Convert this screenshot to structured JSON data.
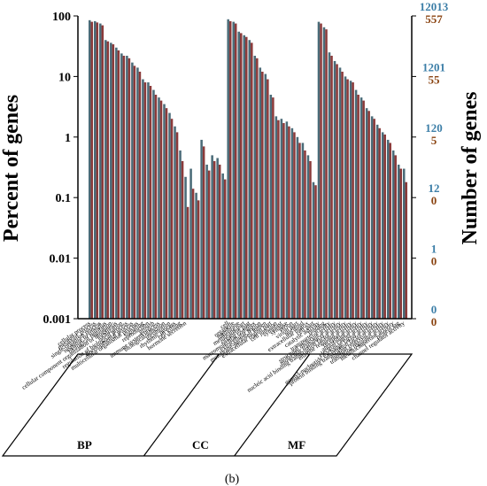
{
  "chart_data": {
    "type": "bar",
    "caption": "(b)",
    "ylabel_left": "Percent of genes",
    "ylabel_right": "Number of genes",
    "yscale": "log",
    "ylim": [
      0.001,
      100
    ],
    "left_ticks": [
      "100",
      "10",
      "1",
      "0.1",
      "0.01",
      "0.001"
    ],
    "right_ticks": [
      {
        "top": "12013",
        "bottom": "557"
      },
      {
        "top": "1201",
        "bottom": "55"
      },
      {
        "top": "120",
        "bottom": "5"
      },
      {
        "top": "12",
        "bottom": "0"
      },
      {
        "top": "1",
        "bottom": "0"
      },
      {
        "top": "0",
        "bottom": "0"
      }
    ],
    "colors": {
      "series_a": "#4a6b78",
      "series_b": "#8b3a3a",
      "right_top": "#3d7fa8",
      "right_bottom": "#8b4513"
    },
    "groups": [
      {
        "name": "BP",
        "start": 0,
        "end": 25
      },
      {
        "name": "CC",
        "start": 26,
        "end": 42
      },
      {
        "name": "MF",
        "start": 43,
        "end": 60
      }
    ],
    "categories": [
      "cellular process",
      "metabolic process",
      "single-organism process",
      "response to stimulus",
      "biological regulation",
      "cellular component organization or biogenesis",
      "localization",
      "regulation of biological process",
      "developmental process",
      "multicellular organismal process",
      "signaling",
      "reproduction",
      "growth",
      "immune system process",
      "biological adhesion",
      "locomotion",
      "rhythmic process",
      "cell killing",
      "hormone secretion",
      "",
      "",
      "",
      "",
      "",
      "",
      "",
      "cell",
      "organelle",
      "membrane",
      "membrane part",
      "organelle part",
      "macromolecular complex",
      "extracellular region",
      "membrane-enclosed lumen",
      "extracellular region part",
      "cell junction",
      "symplast",
      "synapse",
      "virion",
      "virion part",
      "nucleoid",
      "extracellular matrix",
      "cell part",
      "catalytic activity",
      "binding",
      "transporter activity",
      "structural molecule activity",
      "molecular transducer activity",
      "nucleic acid binding transcription factor activity",
      "enzyme regulator activity",
      "receptor activity",
      "antioxidant activity",
      "electron carrier activity",
      "guanyl-nucleotide exchange factor activity",
      "protein binding transcription factor activity",
      "nutrient reservoir activity",
      "translation regulator activity",
      "metallochaperone activity",
      "protein tag",
      "channel regulator activity"
    ],
    "series": [
      {
        "values": [
          85,
          82,
          75,
          40,
          36,
          30,
          24,
          22,
          17,
          14,
          9,
          8,
          6,
          4.5,
          3.5,
          2.5,
          1.5,
          0.6,
          0.22,
          0.3,
          0.12,
          0.9,
          0.35,
          0.5,
          0.45,
          0.25,
          88,
          80,
          55,
          48,
          40,
          22,
          14,
          11,
          5,
          2.2,
          2.0,
          1.8,
          1.4,
          1.0,
          0.8,
          0.5,
          0.18,
          80,
          65,
          25,
          18,
          14,
          10,
          8.5,
          6,
          4.5,
          3,
          2.2,
          1.6,
          1.2,
          0.9,
          0.6,
          0.35,
          0.3
        ]
      },
      {
        "values": [
          80,
          78,
          70,
          38,
          34,
          27,
          22,
          20,
          15,
          12,
          8,
          7,
          5,
          4,
          3,
          2,
          1.2,
          0.4,
          0.07,
          0.14,
          0.09,
          0.7,
          0.28,
          0.4,
          0.35,
          0.2,
          82,
          75,
          52,
          45,
          36,
          20,
          12,
          9,
          4.5,
          1.9,
          1.7,
          1.5,
          1.2,
          0.8,
          0.6,
          0.4,
          0.16,
          75,
          60,
          22,
          16,
          12,
          9,
          8,
          5,
          4,
          2.7,
          2,
          1.4,
          1.1,
          0.8,
          0.5,
          0.3,
          0.18
        ]
      }
    ],
    "xlabels_groups": [
      "BP",
      "CC",
      "MF"
    ]
  }
}
